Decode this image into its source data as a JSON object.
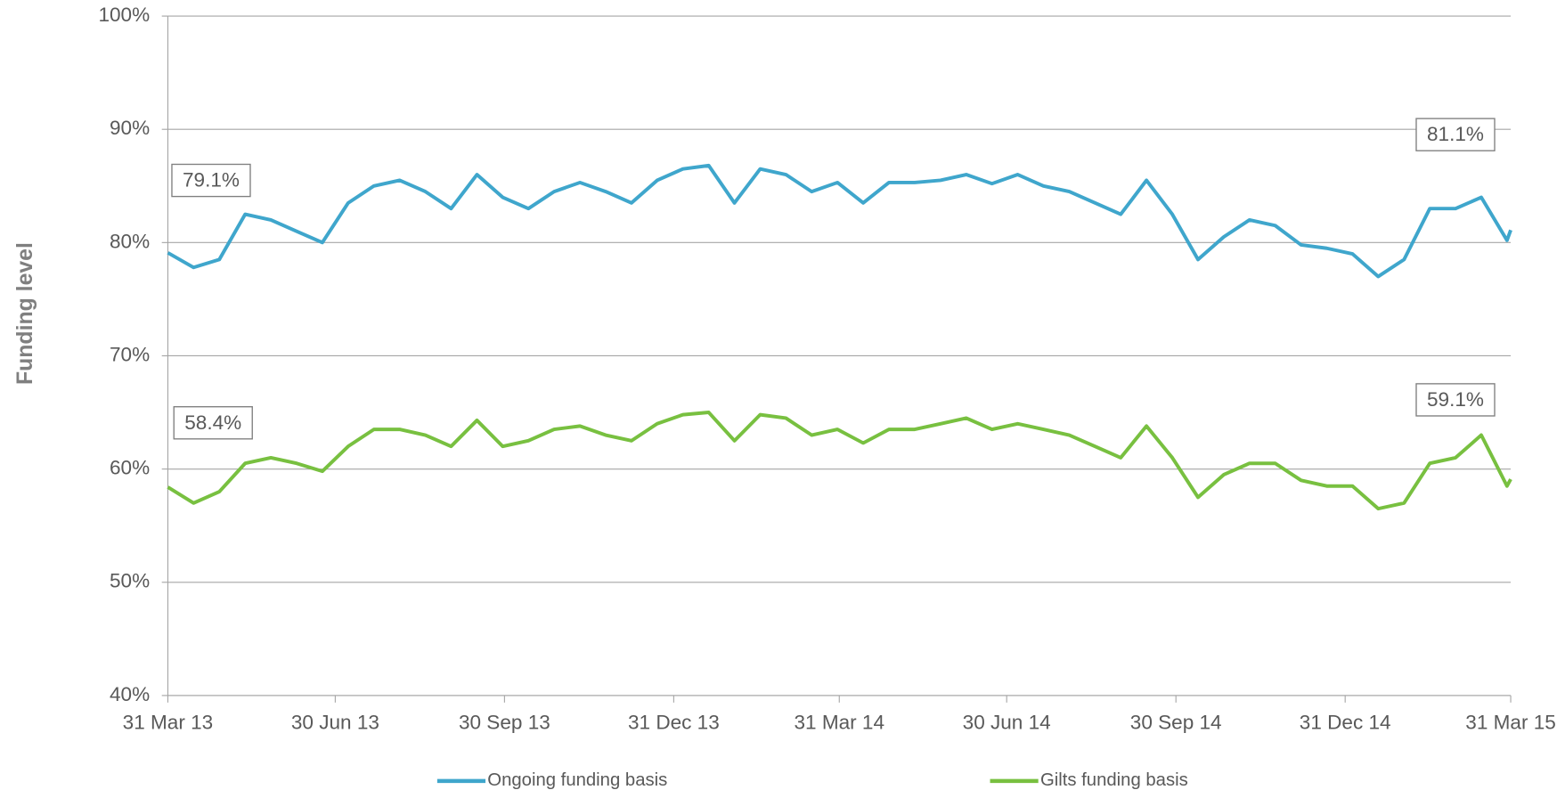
{
  "chart_data": {
    "type": "line",
    "ylabel": "Funding level",
    "x": [
      "2013-03-31",
      "2013-04-14",
      "2013-04-28",
      "2013-05-12",
      "2013-05-26",
      "2013-06-09",
      "2013-06-23",
      "2013-07-07",
      "2013-07-21",
      "2013-08-04",
      "2013-08-18",
      "2013-09-01",
      "2013-09-15",
      "2013-09-29",
      "2013-10-13",
      "2013-10-27",
      "2013-11-10",
      "2013-11-24",
      "2013-12-08",
      "2013-12-22",
      "2014-01-05",
      "2014-01-19",
      "2014-02-02",
      "2014-02-16",
      "2014-03-02",
      "2014-03-16",
      "2014-03-30",
      "2014-04-13",
      "2014-04-27",
      "2014-05-11",
      "2014-05-25",
      "2014-06-08",
      "2014-06-22",
      "2014-07-06",
      "2014-07-20",
      "2014-08-03",
      "2014-08-17",
      "2014-08-31",
      "2014-09-14",
      "2014-09-28",
      "2014-10-12",
      "2014-10-26",
      "2014-11-09",
      "2014-11-23",
      "2014-12-07",
      "2014-12-21",
      "2015-01-04",
      "2015-01-18",
      "2015-02-01",
      "2015-02-15",
      "2015-03-01",
      "2015-03-15",
      "2015-03-29",
      "2015-03-31"
    ],
    "series": [
      {
        "name": "Ongoing funding basis",
        "color": "#3fa6cc",
        "values": [
          79.1,
          77.8,
          78.5,
          82.5,
          82,
          81,
          80,
          83.5,
          85,
          85.5,
          84.5,
          83,
          86,
          84,
          83,
          84.5,
          85.3,
          84.5,
          83.5,
          85.5,
          86.5,
          86.8,
          83.5,
          86.5,
          86,
          84.5,
          85.3,
          83.5,
          85.3,
          85.3,
          85.5,
          86,
          85.2,
          86,
          85,
          84.5,
          83.5,
          82.5,
          85.5,
          82.5,
          78.5,
          80.5,
          82,
          81.5,
          79.8,
          79.5,
          79,
          77,
          78.5,
          83,
          83,
          84,
          80.2,
          81.1
        ]
      },
      {
        "name": "Gilts funding basis",
        "color": "#78c040",
        "values": [
          58.4,
          57,
          58,
          60.5,
          61,
          60.5,
          59.8,
          62,
          63.5,
          63.5,
          63,
          62,
          64.3,
          62,
          62.5,
          63.5,
          63.8,
          63,
          62.5,
          64,
          64.8,
          65,
          62.5,
          64.8,
          64.5,
          63,
          63.5,
          62.3,
          63.5,
          63.5,
          64,
          64.5,
          63.5,
          64,
          63.5,
          63,
          62,
          61,
          63.8,
          61,
          57.5,
          59.5,
          60.5,
          60.5,
          59,
          58.5,
          58.5,
          56.5,
          57,
          60.5,
          61,
          63,
          58.5,
          59.1
        ]
      }
    ],
    "annotations": [
      {
        "x": "2013-03-31",
        "y": 79.1,
        "label": "79.1%"
      },
      {
        "x": "2015-03-31",
        "y": 81.1,
        "label": "81.1%"
      },
      {
        "x": "2013-03-31",
        "y": 58.4,
        "label": "58.4%"
      },
      {
        "x": "2015-03-31",
        "y": 59.1,
        "label": "59.1%"
      }
    ],
    "xlim": [
      "2013-03-31",
      "2015-03-31"
    ],
    "xticks": [
      {
        "value": "2013-03-31",
        "label": "31 Mar 13"
      },
      {
        "value": "2013-06-30",
        "label": "30 Jun 13"
      },
      {
        "value": "2013-09-30",
        "label": "30 Sep 13"
      },
      {
        "value": "2013-12-31",
        "label": "31 Dec 13"
      },
      {
        "value": "2014-03-31",
        "label": "31 Mar 14"
      },
      {
        "value": "2014-06-30",
        "label": "30 Jun 14"
      },
      {
        "value": "2014-09-30",
        "label": "30 Sep 14"
      },
      {
        "value": "2014-12-31",
        "label": "31 Dec 14"
      },
      {
        "value": "2015-03-31",
        "label": "31 Mar 15"
      }
    ],
    "ylim": [
      40,
      100
    ],
    "yticks": [
      {
        "value": 40,
        "label": "40%"
      },
      {
        "value": 50,
        "label": "50%"
      },
      {
        "value": 60,
        "label": "60%"
      },
      {
        "value": 70,
        "label": "70%"
      },
      {
        "value": 80,
        "label": "80%"
      },
      {
        "value": 90,
        "label": "90%"
      },
      {
        "value": 100,
        "label": "100%"
      }
    ],
    "grid": true,
    "legend": "bottom"
  }
}
